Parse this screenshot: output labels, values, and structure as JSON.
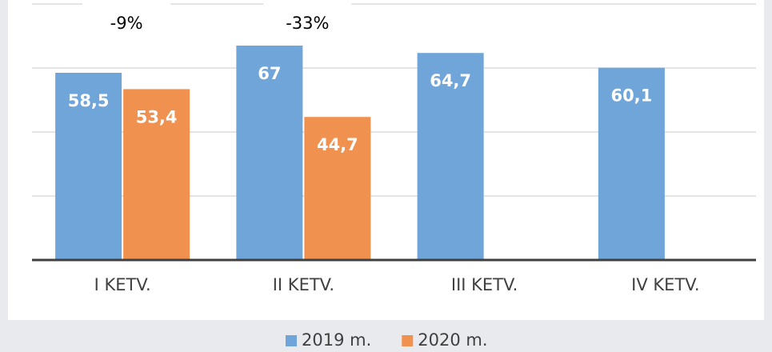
{
  "chart_data": {
    "type": "bar",
    "categories": [
      "I KETV.",
      "II KETV.",
      "III KETV.",
      "IV KETV."
    ],
    "series": [
      {
        "name": "2019 m.",
        "color": "#70a5d9",
        "values": [
          58.5,
          67,
          64.7,
          60.1
        ],
        "value_labels": [
          "58,5",
          "67",
          "64,7",
          "60,1"
        ]
      },
      {
        "name": "2020 m.",
        "color": "#f0914f",
        "values": [
          53.4,
          44.7,
          null,
          null
        ],
        "value_labels": [
          "53,4",
          "44,7",
          null,
          null
        ]
      }
    ],
    "annotations": [
      "-9%",
      "-33%"
    ],
    "ylim": [
      0,
      80
    ],
    "yticks": [
      0,
      20,
      40,
      60,
      80
    ],
    "grid": true,
    "legend": "bottom"
  }
}
